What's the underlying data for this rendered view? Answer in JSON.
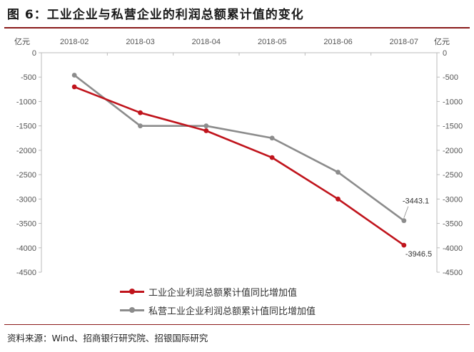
{
  "title": "图 6：工业企业与私营企业的利润总额累计值的变化",
  "source": "资料来源：Wind、招商银行研究院、招银国际研究",
  "chart_data": {
    "type": "line",
    "categories": [
      "2018-02",
      "2018-03",
      "2018-04",
      "2018-05",
      "2018-06",
      "2018-07"
    ],
    "y_unit_left": "亿元",
    "y_unit_right": "亿元",
    "ylim": [
      -4500,
      0
    ],
    "yticks": [
      0,
      -500,
      -1000,
      -1500,
      -2000,
      -2500,
      -3000,
      -3500,
      -4000,
      -4500
    ],
    "series": [
      {
        "name": "工业企业利润总额累计值同比增加值",
        "color": "#c0141c",
        "values": [
          -700,
          -1230,
          -1600,
          -2150,
          -3000,
          -3946.5
        ]
      },
      {
        "name": "私营工业企业利润总额累计值同比增加值",
        "color": "#8c8c8c",
        "values": [
          -460,
          -1500,
          -1500,
          -1750,
          -2450,
          -3443.1
        ]
      }
    ],
    "data_labels": [
      {
        "series": 1,
        "index": 5,
        "text": "-3443.1"
      },
      {
        "series": 0,
        "index": 5,
        "text": "-3946.5"
      }
    ],
    "legend_position": "bottom",
    "grid": false
  }
}
